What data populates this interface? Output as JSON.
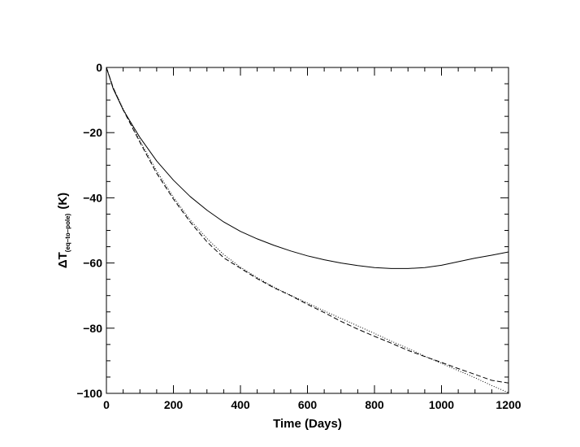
{
  "chart_data": {
    "type": "line",
    "xlabel": "Time (Days)",
    "ylabel": {
      "main": "ΔT",
      "subscript": "(eq–to–pole)",
      "unit": "(K)"
    },
    "xlim": [
      0,
      1200
    ],
    "ylim": [
      -100,
      0
    ],
    "xticks": [
      0,
      200,
      400,
      600,
      800,
      1000,
      1200
    ],
    "xtick_labels": [
      "0",
      "200",
      "400",
      "600",
      "800",
      "1000",
      "1200"
    ],
    "yticks": [
      0,
      -20,
      -40,
      -60,
      -80,
      -100
    ],
    "ytick_labels": [
      "0",
      "−20",
      "−40",
      "−60",
      "−80",
      "−100"
    ],
    "grid": false,
    "series": [
      {
        "style": "solid",
        "color": "#000000",
        "x": [
          0,
          20,
          50,
          100,
          150,
          200,
          250,
          300,
          350,
          400,
          450,
          500,
          550,
          600,
          650,
          700,
          750,
          800,
          850,
          900,
          950,
          1000,
          1050,
          1100,
          1150,
          1200
        ],
        "y": [
          0,
          -6.5,
          -13,
          -21.5,
          -28.7,
          -34.6,
          -39.6,
          -43.8,
          -47.4,
          -50.3,
          -52.6,
          -54.6,
          -56.3,
          -57.8,
          -59.0,
          -60.0,
          -60.8,
          -61.4,
          -61.7,
          -61.7,
          -61.4,
          -60.7,
          -59.6,
          -58.5,
          -57.6,
          -56.6
        ]
      },
      {
        "style": "dashed",
        "color": "#000000",
        "x": [
          0,
          20,
          50,
          100,
          150,
          200,
          250,
          300,
          350,
          400,
          450,
          500,
          550,
          600,
          650,
          700,
          750,
          800,
          850,
          900,
          950,
          1000,
          1050,
          1100,
          1150,
          1180,
          1200
        ],
        "y": [
          0,
          -6.2,
          -13,
          -23,
          -32.5,
          -40.4,
          -47.4,
          -53.5,
          -58.4,
          -61.6,
          -64.8,
          -67.6,
          -70,
          -72.7,
          -75.2,
          -77.9,
          -80.3,
          -82.5,
          -84.6,
          -86.8,
          -88.7,
          -90.5,
          -92.4,
          -94.2,
          -96,
          -96.5,
          -96.8
        ]
      },
      {
        "style": "dotted",
        "color": "#000000",
        "x": [
          0,
          20,
          50,
          100,
          150,
          200,
          250,
          300,
          350,
          400,
          450,
          500,
          550,
          600,
          650,
          700,
          750,
          800,
          850,
          900,
          950,
          1000,
          1050,
          1100,
          1150,
          1200
        ],
        "y": [
          0,
          -6.2,
          -12.7,
          -22.5,
          -31.8,
          -39.8,
          -46.8,
          -52.5,
          -57.4,
          -61.3,
          -64.5,
          -67.4,
          -69.9,
          -72.3,
          -74.7,
          -77.0,
          -79.3,
          -81.6,
          -84.0,
          -86.2,
          -88.6,
          -90.8,
          -93.0,
          -95.2,
          -97.6,
          -99.8
        ]
      }
    ]
  }
}
